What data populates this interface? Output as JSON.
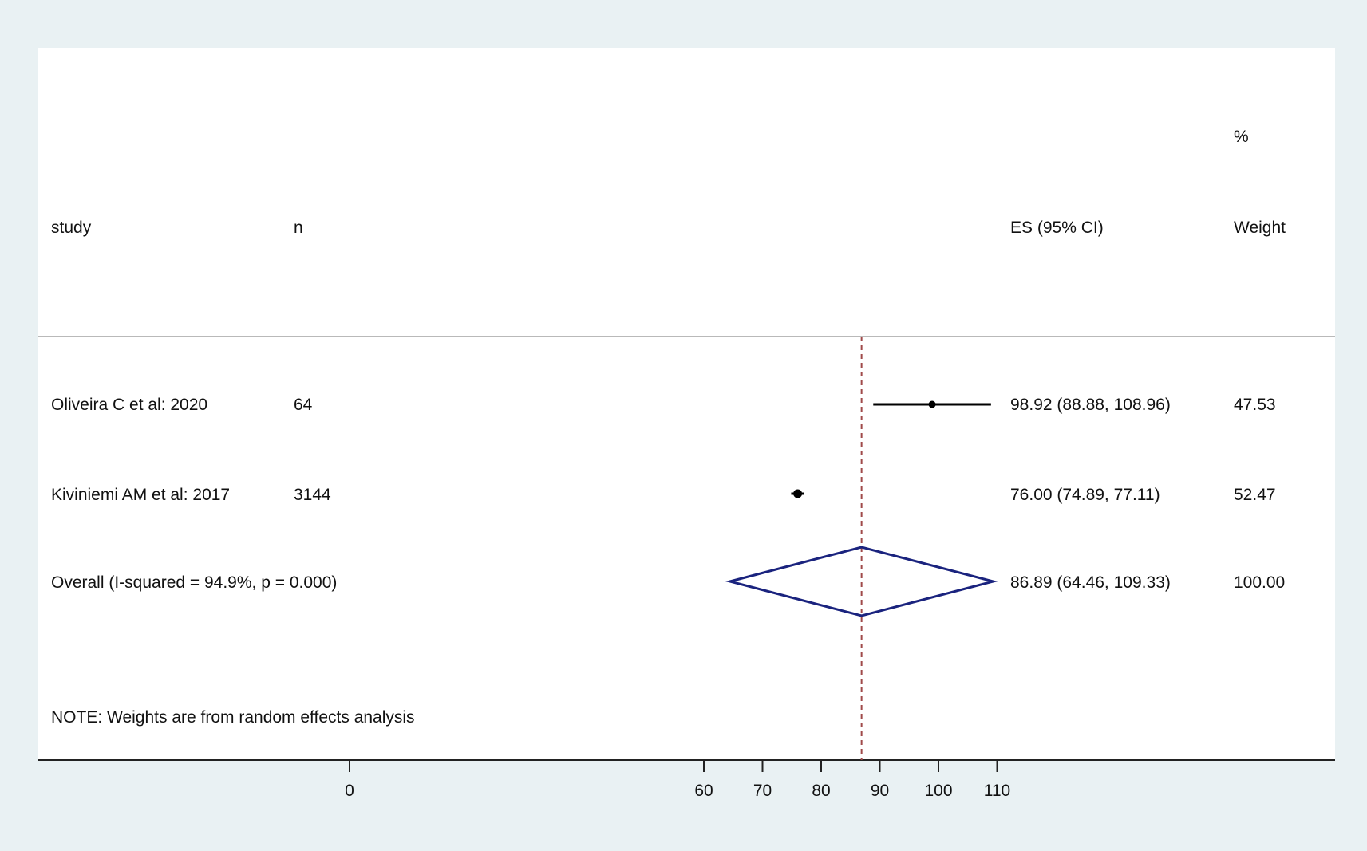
{
  "chart_data": {
    "type": "forest",
    "headers": {
      "study": "study",
      "n": "n",
      "es": "ES (95% CI)",
      "weight_top": "%",
      "weight": "Weight"
    },
    "rows": [
      {
        "study": "Oliveira C et al: 2020",
        "n": "64",
        "es": 98.92,
        "lo": 88.88,
        "hi": 108.96,
        "es_text": "98.92 (88.88, 108.96)",
        "weight": "47.53"
      },
      {
        "study": "Kiviniemi AM et al: 2017",
        "n": "3144",
        "es": 76.0,
        "lo": 74.89,
        "hi": 77.11,
        "es_text": "76.00 (74.89, 77.11)",
        "weight": "52.47"
      }
    ],
    "overall": {
      "label": "Overall  (I-squared = 94.9%, p = 0.000)",
      "es": 86.89,
      "lo": 64.46,
      "hi": 109.33,
      "es_text": "86.89 (64.46, 109.33)",
      "weight": "100.00"
    },
    "note": "NOTE: Weights are from random effects analysis",
    "x_ticks": [
      0,
      60,
      70,
      80,
      90,
      100,
      110
    ],
    "x_tick_labels": [
      "0",
      "60",
      "70",
      "80",
      "90",
      "100",
      "110"
    ],
    "colors": {
      "background": "#e9f1f3",
      "panel": "#ffffff",
      "overall_diamond": "#1a237e",
      "reference_line": "#a04a4a",
      "point": "#000000"
    }
  }
}
